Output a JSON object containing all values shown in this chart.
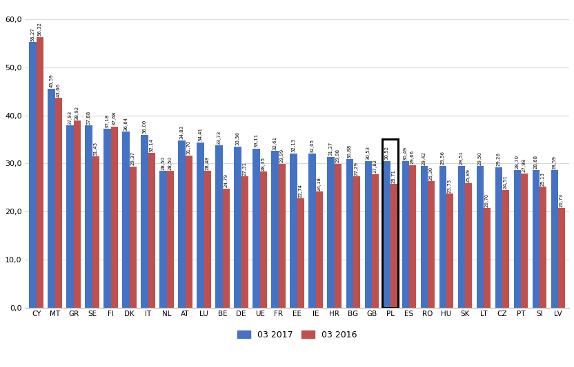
{
  "categories": [
    "CY",
    "MT",
    "GR",
    "SE",
    "FI",
    "DK",
    "IT",
    "NL",
    "AT",
    "LU",
    "BE",
    "DE",
    "UE",
    "FR",
    "EE",
    "IE",
    "HR",
    "BG",
    "GB",
    "PL",
    "ES",
    "RO",
    "HU",
    "SK",
    "LT",
    "CZ",
    "PT",
    "SI",
    "LV"
  ],
  "values_2017": [
    55.27,
    45.59,
    37.93,
    37.88,
    37.18,
    36.64,
    36.0,
    28.5,
    34.83,
    34.41,
    33.73,
    33.56,
    33.11,
    32.61,
    32.13,
    32.05,
    31.37,
    30.88,
    30.53,
    30.52,
    30.49,
    29.42,
    29.56,
    29.51,
    29.5,
    29.26,
    28.7,
    28.68,
    28.59
  ],
  "values_2016": [
    56.32,
    43.66,
    38.92,
    31.43,
    37.68,
    29.37,
    32.14,
    28.5,
    31.7,
    28.48,
    24.79,
    27.31,
    28.35,
    29.99,
    22.74,
    24.18,
    29.98,
    27.29,
    27.82,
    25.71,
    29.66,
    26.3,
    23.73,
    25.89,
    20.7,
    24.51,
    27.98,
    25.13,
    20.73
  ],
  "color_2017": "#4472C4",
  "color_2016": "#C0504D",
  "highlight_category": "PL",
  "ylabel_ticks": [
    0,
    10,
    20,
    30,
    40,
    50,
    60
  ],
  "ytick_labels": [
    "0,0",
    "10,0",
    "20,0",
    "30,0",
    "40,0",
    "50,0",
    "60,0"
  ],
  "legend_2017": "03 2017",
  "legend_2016": "03 2016",
  "background_color": "#FFFFFF",
  "grid_color": "#D9D9D9"
}
